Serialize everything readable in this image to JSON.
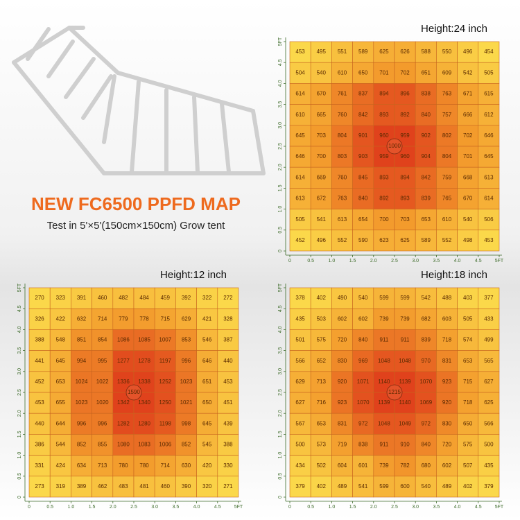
{
  "header": {
    "title": "NEW FC6500 PPFD MAP",
    "subtitle": "Test in 5'×5'(150cm×150cm) Grow tent"
  },
  "chart_data": [
    {
      "type": "heatmap",
      "title": "Height:24 inch",
      "colors": [
        "#fbd84a",
        "#f39a2c",
        "#e0421c"
      ],
      "xlim": [
        0,
        5
      ],
      "ylim": [
        0,
        5
      ],
      "xticks": [
        0,
        0.5,
        {
          "value": 1,
          "label": "1.0"
        },
        1.5,
        {
          "value": 2,
          "label": "2.0"
        },
        2.5,
        {
          "value": 3,
          "label": "3.0"
        },
        3.5,
        {
          "value": 4,
          "label": "4.0"
        },
        4.5,
        {
          "value": 5,
          "label": "5FT"
        }
      ],
      "yticks": [
        0,
        0.5,
        {
          "value": 1,
          "label": "1.0"
        },
        1.5,
        {
          "value": 2,
          "label": "2.0"
        },
        2.5,
        {
          "value": 3,
          "label": "3.0"
        },
        3.5,
        {
          "value": 4,
          "label": "4.0"
        },
        4.5,
        {
          "value": 5,
          "label": "5FT"
        }
      ],
      "center_value": 1000,
      "values": [
        [
          453,
          495,
          551,
          589,
          625,
          626,
          588,
          550,
          496,
          454
        ],
        [
          504,
          540,
          610,
          650,
          701,
          702,
          651,
          609,
          542,
          505
        ],
        [
          614,
          670,
          761,
          837,
          894,
          896,
          838,
          763,
          671,
          615
        ],
        [
          610,
          665,
          760,
          842,
          893,
          892,
          840,
          757,
          666,
          612
        ],
        [
          645,
          703,
          804,
          901,
          960,
          959,
          902,
          802,
          702,
          646
        ],
        [
          646,
          700,
          803,
          903,
          959,
          960,
          904,
          804,
          701,
          645
        ],
        [
          614,
          669,
          760,
          845,
          893,
          894,
          842,
          759,
          668,
          613
        ],
        [
          613,
          672,
          763,
          840,
          892,
          893,
          839,
          765,
          670,
          614
        ],
        [
          505,
          541,
          613,
          654,
          700,
          703,
          653,
          610,
          540,
          506
        ],
        [
          452,
          496,
          552,
          590,
          623,
          625,
          589,
          552,
          498,
          453
        ]
      ]
    },
    {
      "type": "heatmap",
      "title": "Height:12 inch",
      "colors": [
        "#fbd84a",
        "#f39a2c",
        "#e0421c"
      ],
      "xlim": [
        0,
        5
      ],
      "ylim": [
        0,
        5
      ],
      "xticks": [
        0,
        0.5,
        {
          "value": 1,
          "label": "1.0"
        },
        1.5,
        {
          "value": 2,
          "label": "2.0"
        },
        2.5,
        {
          "value": 3,
          "label": "3.0"
        },
        3.5,
        {
          "value": 4,
          "label": "4.0"
        },
        4.5,
        {
          "value": 5,
          "label": "5FT"
        }
      ],
      "yticks": [
        0,
        0.5,
        {
          "value": 1,
          "label": "1.0"
        },
        1.5,
        {
          "value": 2,
          "label": "2.0"
        },
        2.5,
        {
          "value": 3,
          "label": "3.0"
        },
        3.5,
        {
          "value": 4,
          "label": "4.0"
        },
        4.5,
        {
          "value": 5,
          "label": "5FT"
        }
      ],
      "center_value": 1590,
      "values": [
        [
          270,
          323,
          391,
          460,
          482,
          484,
          459,
          392,
          322,
          272
        ],
        [
          326,
          422,
          632,
          714,
          779,
          778,
          715,
          629,
          421,
          328
        ],
        [
          388,
          548,
          851,
          854,
          1086,
          1085,
          1007,
          853,
          546,
          387
        ],
        [
          441,
          645,
          994,
          995,
          1277,
          1278,
          1197,
          996,
          646,
          440
        ],
        [
          452,
          653,
          1024,
          1022,
          1336,
          1338,
          1252,
          1023,
          651,
          453
        ],
        [
          453,
          655,
          1023,
          1020,
          1342,
          1340,
          1250,
          1021,
          650,
          451
        ],
        [
          440,
          644,
          996,
          996,
          1282,
          1280,
          1198,
          998,
          645,
          439
        ],
        [
          386,
          544,
          852,
          855,
          1080,
          1083,
          1006,
          852,
          545,
          388
        ],
        [
          331,
          424,
          634,
          713,
          780,
          780,
          714,
          630,
          420,
          330
        ],
        [
          273,
          319,
          389,
          462,
          483,
          481,
          460,
          390,
          320,
          271
        ]
      ]
    },
    {
      "type": "heatmap",
      "title": "Height:18 inch",
      "colors": [
        "#fbd84a",
        "#f39a2c",
        "#e0421c"
      ],
      "xlim": [
        0,
        5
      ],
      "ylim": [
        0,
        5
      ],
      "xticks": [
        0,
        0.5,
        {
          "value": 1,
          "label": "1.0"
        },
        1.5,
        {
          "value": 2,
          "label": "2.0"
        },
        2.5,
        {
          "value": 3,
          "label": "3.0"
        },
        3.5,
        {
          "value": 4,
          "label": "4.0"
        },
        4.5,
        {
          "value": 5,
          "label": "5FT"
        }
      ],
      "yticks": [
        0,
        0.5,
        {
          "value": 1,
          "label": "1.0"
        },
        1.5,
        {
          "value": 2,
          "label": "2.0"
        },
        2.5,
        {
          "value": 3,
          "label": "3.0"
        },
        3.5,
        {
          "value": 4,
          "label": "4.0"
        },
        4.5,
        {
          "value": 5,
          "label": "5FT"
        }
      ],
      "center_value": 1215,
      "values": [
        [
          378,
          402,
          490,
          540,
          599,
          599,
          542,
          488,
          403,
          377
        ],
        [
          435,
          503,
          602,
          602,
          739,
          739,
          682,
          603,
          505,
          433
        ],
        [
          501,
          575,
          720,
          840,
          911,
          911,
          839,
          718,
          574,
          499
        ],
        [
          566,
          652,
          830,
          969,
          1048,
          1048,
          970,
          831,
          653,
          565
        ],
        [
          629,
          713,
          920,
          1071,
          1140,
          1139,
          1070,
          923,
          715,
          627
        ],
        [
          627,
          716,
          923,
          1070,
          1139,
          1140,
          1069,
          920,
          718,
          625
        ],
        [
          567,
          653,
          831,
          972,
          1048,
          1049,
          972,
          830,
          650,
          566
        ],
        [
          500,
          573,
          719,
          838,
          911,
          910,
          840,
          720,
          575,
          500
        ],
        [
          434,
          502,
          604,
          601,
          739,
          782,
          680,
          602,
          507,
          435
        ],
        [
          379,
          402,
          489,
          541,
          599,
          600,
          540,
          489,
          402,
          379
        ]
      ]
    }
  ]
}
